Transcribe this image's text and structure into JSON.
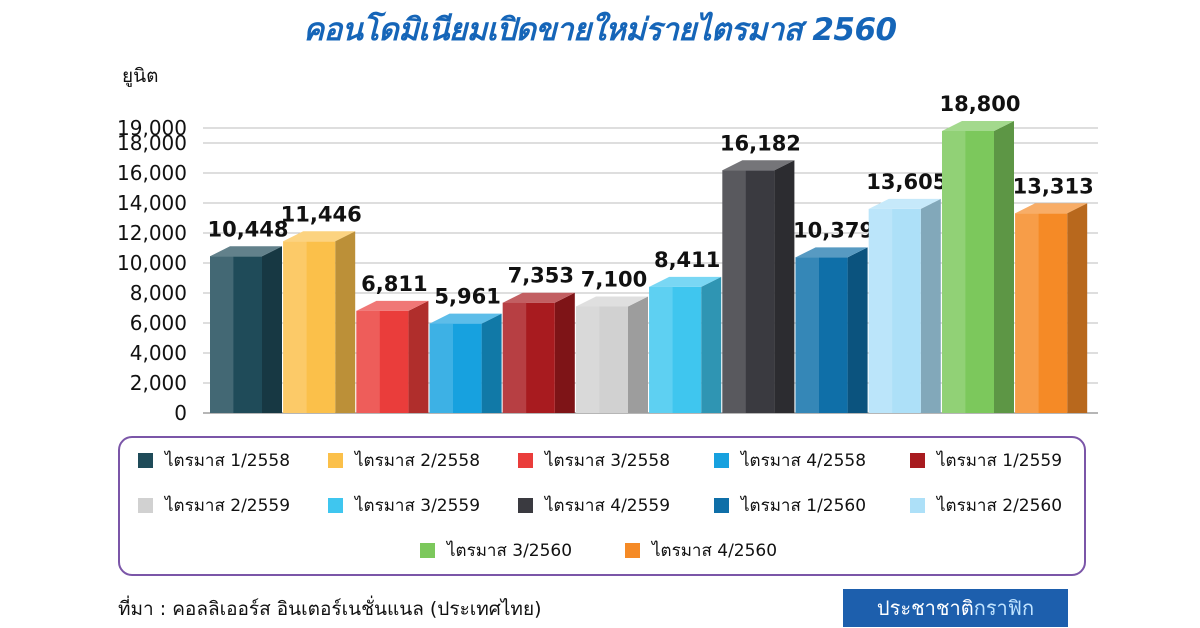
{
  "chart_data": {
    "type": "bar",
    "title": "คอนโดมิเนียมเปิดขายใหม่รายไตรมาส 2560",
    "ylabel": "ยูนิต",
    "xlabel": "",
    "ylim": [
      0,
      19000
    ],
    "yticks": [
      "0",
      "2,000",
      "4,000",
      "6,000",
      "8,000",
      "10,000",
      "12,000",
      "14,000",
      "16,000",
      "18,000",
      "19,000"
    ],
    "grid": true,
    "legend_position": "bottom",
    "categories": [
      "ไตรมาส 1/2558",
      "ไตรมาส 2/2558",
      "ไตรมาส 3/2558",
      "ไตรมาส 4/2558",
      "ไตรมาส 1/2559",
      "ไตรมาส 2/2559",
      "ไตรมาส 3/2559",
      "ไตรมาส 4/2559",
      "ไตรมาส 1/2560",
      "ไตรมาส 2/2560",
      "ไตรมาส 3/2560",
      "ไตรมาส 4/2560"
    ],
    "values": [
      10448,
      11446,
      6811,
      5961,
      7353,
      7100,
      8411,
      16182,
      10379,
      13605,
      18800,
      13313
    ],
    "data_labels": [
      "10,448",
      "11,446",
      "6,811",
      "5,961",
      "7,353",
      "7,100",
      "8,411",
      "16,182",
      "10,379",
      "13,605",
      "18,800",
      "13,313"
    ],
    "colors": [
      "#1f4b59",
      "#fbc04a",
      "#ea3d3b",
      "#17a1df",
      "#a81b1f",
      "#d1d1d1",
      "#3fc6ef",
      "#3a3a40",
      "#0f6fa8",
      "#ade0f8",
      "#7cc85c",
      "#f58a26"
    ]
  },
  "source": "ที่มา : คอลลิเออร์ส อินเตอร์เนชั่นแนล (ประเทศไทย)",
  "brand": {
    "part1": "ประชาชาติ",
    "part2": "กราฟิก"
  }
}
